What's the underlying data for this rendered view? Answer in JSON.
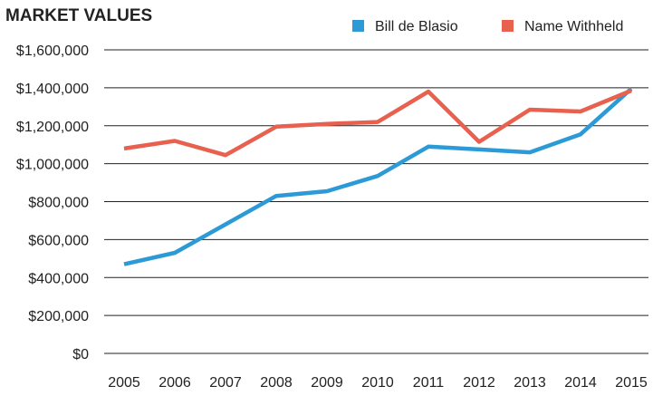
{
  "chart_data": {
    "type": "line",
    "title": "MARKET VALUES",
    "x": [
      "2005",
      "2006",
      "2007",
      "2008",
      "2009",
      "2010",
      "2011",
      "2012",
      "2013",
      "2014",
      "2015"
    ],
    "ylim": [
      0,
      1600000
    ],
    "y_ticks": [
      "$0",
      "$200,000",
      "$400,000",
      "$600,000",
      "$800,000",
      "$1,000,000",
      "$1,200,000",
      "$1,400,000",
      "$1,600,000"
    ],
    "grid": true,
    "legend_position": "top-right",
    "series": [
      {
        "name": "Bill de Blasio",
        "color": "#2b9ad6",
        "values": [
          470000,
          530000,
          680000,
          830000,
          855000,
          935000,
          1090000,
          1075000,
          1060000,
          1155000,
          1395000
        ]
      },
      {
        "name": "Name Withheld",
        "color": "#e8604e",
        "values": [
          1080000,
          1120000,
          1045000,
          1195000,
          1210000,
          1220000,
          1380000,
          1115000,
          1285000,
          1275000,
          1385000
        ]
      }
    ]
  }
}
